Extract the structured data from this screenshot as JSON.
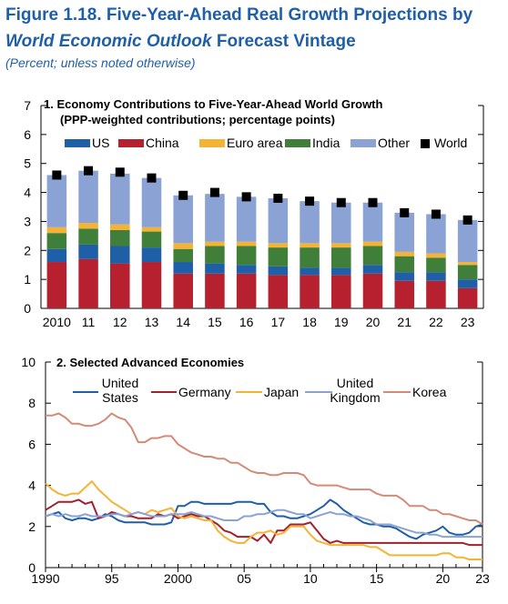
{
  "figure": {
    "title_line1": "Figure 1.18.  Five-Year-Ahead Real Growth Projections by",
    "title_line2_italic": "World Economic Outlook",
    "title_line2_rest": " Forecast Vintage",
    "subtitle": "(Percent; unless noted otherwise)"
  },
  "chart_data": [
    {
      "type": "bar",
      "stacked": true,
      "title": "1. Economy Contributions to Five-Year-Ahead World Growth",
      "subtitle": "(PPP-weighted contributions; percentage points)",
      "categories": [
        "2010",
        "11",
        "12",
        "13",
        "14",
        "15",
        "16",
        "17",
        "18",
        "19",
        "20",
        "21",
        "22",
        "23"
      ],
      "ylim": [
        0,
        7
      ],
      "yticks": [
        "0",
        "1",
        "2",
        "3",
        "4",
        "5",
        "6",
        "7"
      ],
      "legend_placement": "top",
      "series": [
        {
          "name": "China",
          "color": "#b7202e",
          "values": [
            1.6,
            1.7,
            1.55,
            1.6,
            1.2,
            1.2,
            1.2,
            1.15,
            1.15,
            1.15,
            1.2,
            0.95,
            0.95,
            0.7
          ]
        },
        {
          "name": "US",
          "color": "#1f5fa8",
          "values": [
            0.45,
            0.5,
            0.6,
            0.5,
            0.4,
            0.35,
            0.3,
            0.3,
            0.25,
            0.25,
            0.3,
            0.3,
            0.3,
            0.3
          ]
        },
        {
          "name": "India",
          "color": "#3f7f3a",
          "values": [
            0.55,
            0.55,
            0.55,
            0.55,
            0.45,
            0.6,
            0.65,
            0.65,
            0.7,
            0.7,
            0.65,
            0.55,
            0.5,
            0.5
          ]
        },
        {
          "name": "Euro area",
          "color": "#f5b335",
          "values": [
            0.2,
            0.2,
            0.2,
            0.15,
            0.2,
            0.15,
            0.15,
            0.15,
            0.15,
            0.15,
            0.15,
            0.15,
            0.15,
            0.1
          ]
        },
        {
          "name": "Other",
          "color": "#8aa3d4",
          "values": [
            1.8,
            1.8,
            1.75,
            1.7,
            1.65,
            1.65,
            1.55,
            1.55,
            1.45,
            1.4,
            1.35,
            1.35,
            1.35,
            1.45
          ]
        }
      ],
      "legend_order": [
        "US",
        "China",
        "Euro area",
        "India",
        "Other"
      ],
      "world": {
        "name": "World",
        "values": [
          4.6,
          4.75,
          4.7,
          4.5,
          3.9,
          4.0,
          3.85,
          3.8,
          3.7,
          3.65,
          3.65,
          3.3,
          3.25,
          3.05
        ]
      }
    },
    {
      "type": "line",
      "title": "2. Selected Advanced Economies",
      "xlim": [
        1990,
        2023
      ],
      "ylim": [
        0,
        10
      ],
      "xticks": [
        {
          "v": 1990,
          "label": "1990"
        },
        {
          "v": 1995,
          "label": "95"
        },
        {
          "v": 2000,
          "label": "2000"
        },
        {
          "v": 2005,
          "label": "05"
        },
        {
          "v": 2010,
          "label": "10"
        },
        {
          "v": 2015,
          "label": "15"
        },
        {
          "v": 2020,
          "label": "20"
        },
        {
          "v": 2023,
          "label": "23"
        }
      ],
      "yticks": [
        "0",
        "2",
        "4",
        "6",
        "8",
        "10"
      ],
      "x": [
        1990,
        1990.5,
        1991,
        1991.5,
        1992,
        1992.5,
        1993,
        1993.5,
        1994,
        1994.5,
        1995,
        1995.5,
        1996,
        1996.5,
        1997,
        1997.5,
        1998,
        1998.5,
        1999,
        1999.5,
        2000,
        2000.5,
        2001,
        2001.5,
        2002,
        2002.5,
        2003,
        2003.5,
        2004,
        2004.5,
        2005,
        2005.5,
        2006,
        2006.5,
        2007,
        2007.5,
        2008,
        2008.5,
        2009,
        2009.5,
        2010,
        2010.5,
        2011,
        2011.5,
        2012,
        2012.5,
        2013,
        2013.5,
        2014,
        2014.5,
        2015,
        2015.5,
        2016,
        2016.5,
        2017,
        2017.5,
        2018,
        2018.5,
        2019,
        2019.5,
        2020,
        2020.5,
        2021,
        2021.5,
        2022,
        2022.5,
        2023
      ],
      "series": [
        {
          "name": "United States",
          "label_lines": [
            "United",
            "States"
          ],
          "color": "#1f5fa8",
          "values": [
            2.5,
            2.6,
            2.7,
            2.4,
            2.3,
            2.4,
            2.4,
            2.3,
            2.4,
            2.6,
            2.5,
            2.3,
            2.2,
            2.2,
            2.2,
            2.2,
            2.1,
            2.1,
            2.1,
            2.2,
            3.0,
            3.0,
            3.2,
            3.2,
            3.1,
            3.1,
            3.1,
            3.1,
            3.1,
            3.2,
            3.2,
            3.2,
            3.1,
            3.1,
            2.7,
            2.5,
            2.5,
            2.4,
            2.4,
            2.5,
            2.6,
            2.8,
            3.0,
            3.3,
            3.1,
            2.8,
            2.6,
            2.4,
            2.2,
            2.1,
            2.1,
            2.0,
            2.0,
            1.9,
            1.7,
            1.5,
            1.4,
            1.6,
            1.7,
            1.8,
            2.0,
            1.7,
            1.6,
            1.6,
            1.7,
            2.0,
            2.1
          ]
        },
        {
          "name": "Germany",
          "label_lines": [
            "Germany"
          ],
          "color": "#a21f2e",
          "values": [
            2.8,
            3.0,
            3.2,
            3.2,
            3.2,
            3.3,
            3.1,
            3.2,
            2.4,
            2.5,
            2.7,
            2.6,
            2.5,
            2.5,
            2.4,
            2.4,
            2.4,
            2.6,
            2.5,
            2.6,
            2.4,
            2.5,
            2.6,
            2.5,
            2.5,
            2.3,
            2.1,
            1.8,
            1.7,
            1.5,
            1.5,
            1.5,
            1.3,
            1.6,
            1.2,
            1.8,
            1.8,
            2.1,
            2.1,
            2.1,
            2.2,
            1.8,
            1.4,
            1.2,
            1.3,
            1.2,
            1.2,
            1.2,
            1.2,
            1.2,
            1.2,
            1.2,
            1.2,
            1.2,
            1.2,
            1.2,
            1.2,
            1.2,
            1.2,
            1.2,
            1.2,
            1.2,
            1.2,
            1.2,
            1.1,
            1.1,
            1.1
          ]
        },
        {
          "name": "Japan",
          "label_lines": [
            "Japan"
          ],
          "color": "#f5b335",
          "values": [
            4.1,
            3.8,
            3.6,
            3.5,
            3.6,
            3.6,
            3.9,
            4.2,
            3.8,
            3.5,
            3.2,
            3.0,
            2.8,
            2.6,
            2.7,
            2.6,
            2.8,
            2.7,
            2.8,
            2.9,
            2.5,
            2.4,
            2.5,
            2.4,
            2.3,
            2.3,
            1.8,
            1.5,
            1.3,
            1.2,
            1.2,
            1.5,
            1.7,
            1.7,
            1.8,
            1.6,
            1.7,
            2.0,
            2.0,
            2.0,
            1.6,
            1.3,
            1.2,
            1.1,
            1.1,
            1.1,
            1.1,
            1.1,
            1.1,
            1.0,
            1.0,
            0.8,
            0.6,
            0.6,
            0.6,
            0.6,
            0.6,
            0.6,
            0.6,
            0.6,
            0.7,
            0.7,
            0.5,
            0.5,
            0.4,
            0.4,
            0.4
          ]
        },
        {
          "name": "United Kingdom",
          "label_lines": [
            "United",
            "Kingdom"
          ],
          "color": "#8aa3d4",
          "values": [
            2.5,
            2.6,
            2.5,
            2.6,
            2.5,
            2.5,
            2.6,
            2.5,
            2.5,
            2.5,
            2.6,
            2.6,
            2.5,
            2.6,
            2.7,
            2.6,
            2.5,
            2.5,
            2.5,
            2.6,
            2.6,
            2.6,
            2.7,
            2.6,
            2.5,
            2.5,
            2.4,
            2.3,
            2.3,
            2.3,
            2.5,
            2.5,
            2.6,
            2.6,
            2.7,
            2.8,
            2.8,
            2.7,
            2.6,
            2.6,
            2.4,
            2.5,
            2.6,
            2.7,
            2.6,
            2.6,
            2.5,
            2.5,
            2.4,
            2.3,
            2.1,
            2.1,
            2.1,
            2.0,
            1.9,
            1.8,
            1.7,
            1.7,
            1.6,
            1.6,
            1.5,
            1.5,
            1.5,
            1.5,
            1.5,
            1.5,
            1.5
          ]
        },
        {
          "name": "Korea",
          "label_lines": [
            "Korea"
          ],
          "color": "#d58a78",
          "values": [
            7.4,
            7.4,
            7.5,
            7.3,
            7.0,
            7.0,
            6.9,
            6.9,
            7.0,
            7.2,
            7.5,
            7.3,
            7.2,
            6.8,
            6.1,
            6.1,
            6.3,
            6.3,
            6.4,
            6.4,
            6.0,
            5.8,
            5.6,
            5.5,
            5.4,
            5.4,
            5.3,
            5.3,
            5.1,
            5.1,
            4.9,
            4.7,
            4.6,
            4.6,
            4.5,
            4.5,
            4.6,
            4.6,
            4.6,
            4.5,
            4.1,
            4.0,
            4.0,
            4.0,
            4.0,
            3.9,
            3.8,
            3.8,
            3.8,
            3.8,
            3.6,
            3.5,
            3.5,
            3.5,
            3.3,
            3.0,
            3.0,
            3.0,
            2.8,
            2.8,
            2.6,
            2.6,
            2.5,
            2.4,
            2.3,
            2.3,
            2.1
          ]
        }
      ]
    }
  ]
}
